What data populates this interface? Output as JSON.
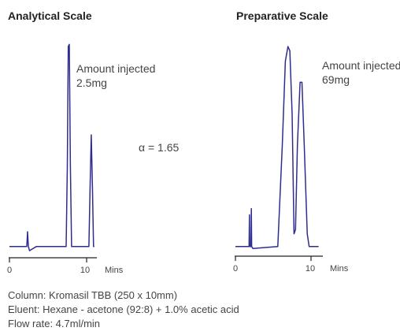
{
  "chart_data": [
    {
      "type": "line",
      "title": "Analytical Scale",
      "xlabel": "Mins",
      "x_ticks": [
        0,
        10
      ],
      "xlim": [
        0,
        11
      ],
      "annotation": [
        "Amount injected",
        "2.5mg"
      ],
      "series": [
        {
          "color": "#2e2d8f",
          "points": [
            [
              0,
              0.02
            ],
            [
              2.0,
              0.02
            ],
            [
              2.25,
              0.02
            ],
            [
              2.35,
              0.09
            ],
            [
              2.45,
              0.02
            ],
            [
              2.6,
              0.0
            ],
            [
              3.5,
              0.02
            ],
            [
              7.35,
              0.02
            ],
            [
              7.5,
              0.4
            ],
            [
              7.62,
              0.97
            ],
            [
              7.75,
              0.98
            ],
            [
              7.9,
              0.4
            ],
            [
              8.05,
              0.02
            ],
            [
              10.3,
              0.02
            ],
            [
              10.45,
              0.3
            ],
            [
              10.6,
              0.55
            ],
            [
              10.75,
              0.3
            ],
            [
              10.9,
              0.02
            ],
            [
              11.0,
              0.02
            ]
          ]
        }
      ]
    },
    {
      "type": "line",
      "title": "Preparative Scale",
      "xlabel": "Mins",
      "x_ticks": [
        0,
        10
      ],
      "xlim": [
        0,
        11
      ],
      "annotation": [
        "Amount injected",
        "69mg"
      ],
      "series": [
        {
          "color": "#2e2d8f",
          "points": [
            [
              0,
              0.02
            ],
            [
              1.8,
              0.02
            ],
            [
              1.85,
              0.17
            ],
            [
              1.9,
              0.02
            ],
            [
              2.05,
              0.02
            ],
            [
              2.1,
              0.2
            ],
            [
              2.15,
              0.02
            ],
            [
              2.3,
              0.01
            ],
            [
              5.6,
              0.02
            ],
            [
              6.2,
              0.5
            ],
            [
              6.6,
              0.9
            ],
            [
              6.95,
              0.97
            ],
            [
              7.2,
              0.95
            ],
            [
              7.5,
              0.65
            ],
            [
              7.75,
              0.08
            ],
            [
              7.95,
              0.1
            ],
            [
              8.2,
              0.5
            ],
            [
              8.55,
              0.8
            ],
            [
              8.8,
              0.8
            ],
            [
              9.1,
              0.5
            ],
            [
              9.5,
              0.08
            ],
            [
              9.75,
              0.02
            ],
            [
              11.0,
              0.02
            ]
          ]
        }
      ]
    }
  ],
  "alpha_label": "α = 1.65",
  "caption": {
    "column": "Column: Kromasil TBB (250 x 10mm)",
    "eluent": "Eluent: Hexane - acetone (92:8) + 1.0% acetic acid",
    "flow": "Flow rate: 4.7ml/min"
  },
  "colors": {
    "trace": "#2e2d8f"
  }
}
